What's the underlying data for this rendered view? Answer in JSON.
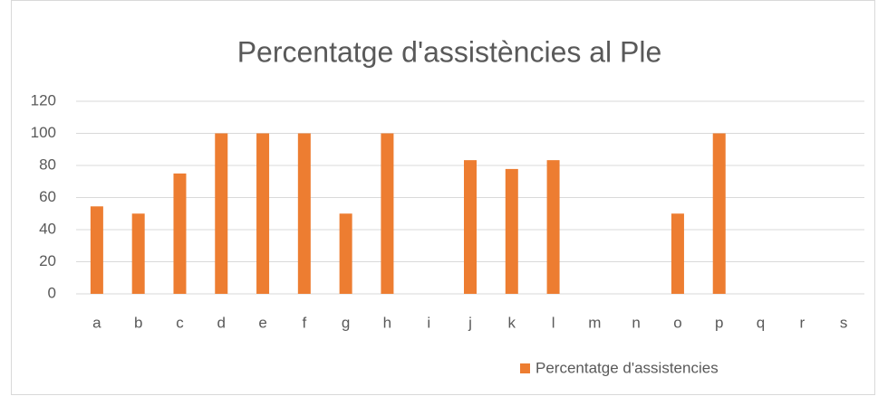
{
  "chart_data": {
    "type": "bar",
    "title": "Percentatge d'assistències al Ple",
    "categories": [
      "a",
      "b",
      "c",
      "d",
      "e",
      "f",
      "g",
      "h",
      "i",
      "j",
      "k",
      "l",
      "m",
      "n",
      "o",
      "p",
      "q",
      "r",
      "s"
    ],
    "series": [
      {
        "name": "Percentatge d'assistencies",
        "color": "#ed7d31",
        "values": [
          54.5,
          50,
          75,
          100,
          100,
          100,
          50,
          100,
          0,
          83.3,
          77.8,
          83.3,
          0,
          0,
          50,
          100,
          0,
          0,
          0
        ]
      }
    ],
    "ylim": [
      0,
      120
    ],
    "yticks": [
      0,
      20,
      40,
      60,
      80,
      100,
      120
    ],
    "grid": true,
    "legend": "bottom"
  }
}
